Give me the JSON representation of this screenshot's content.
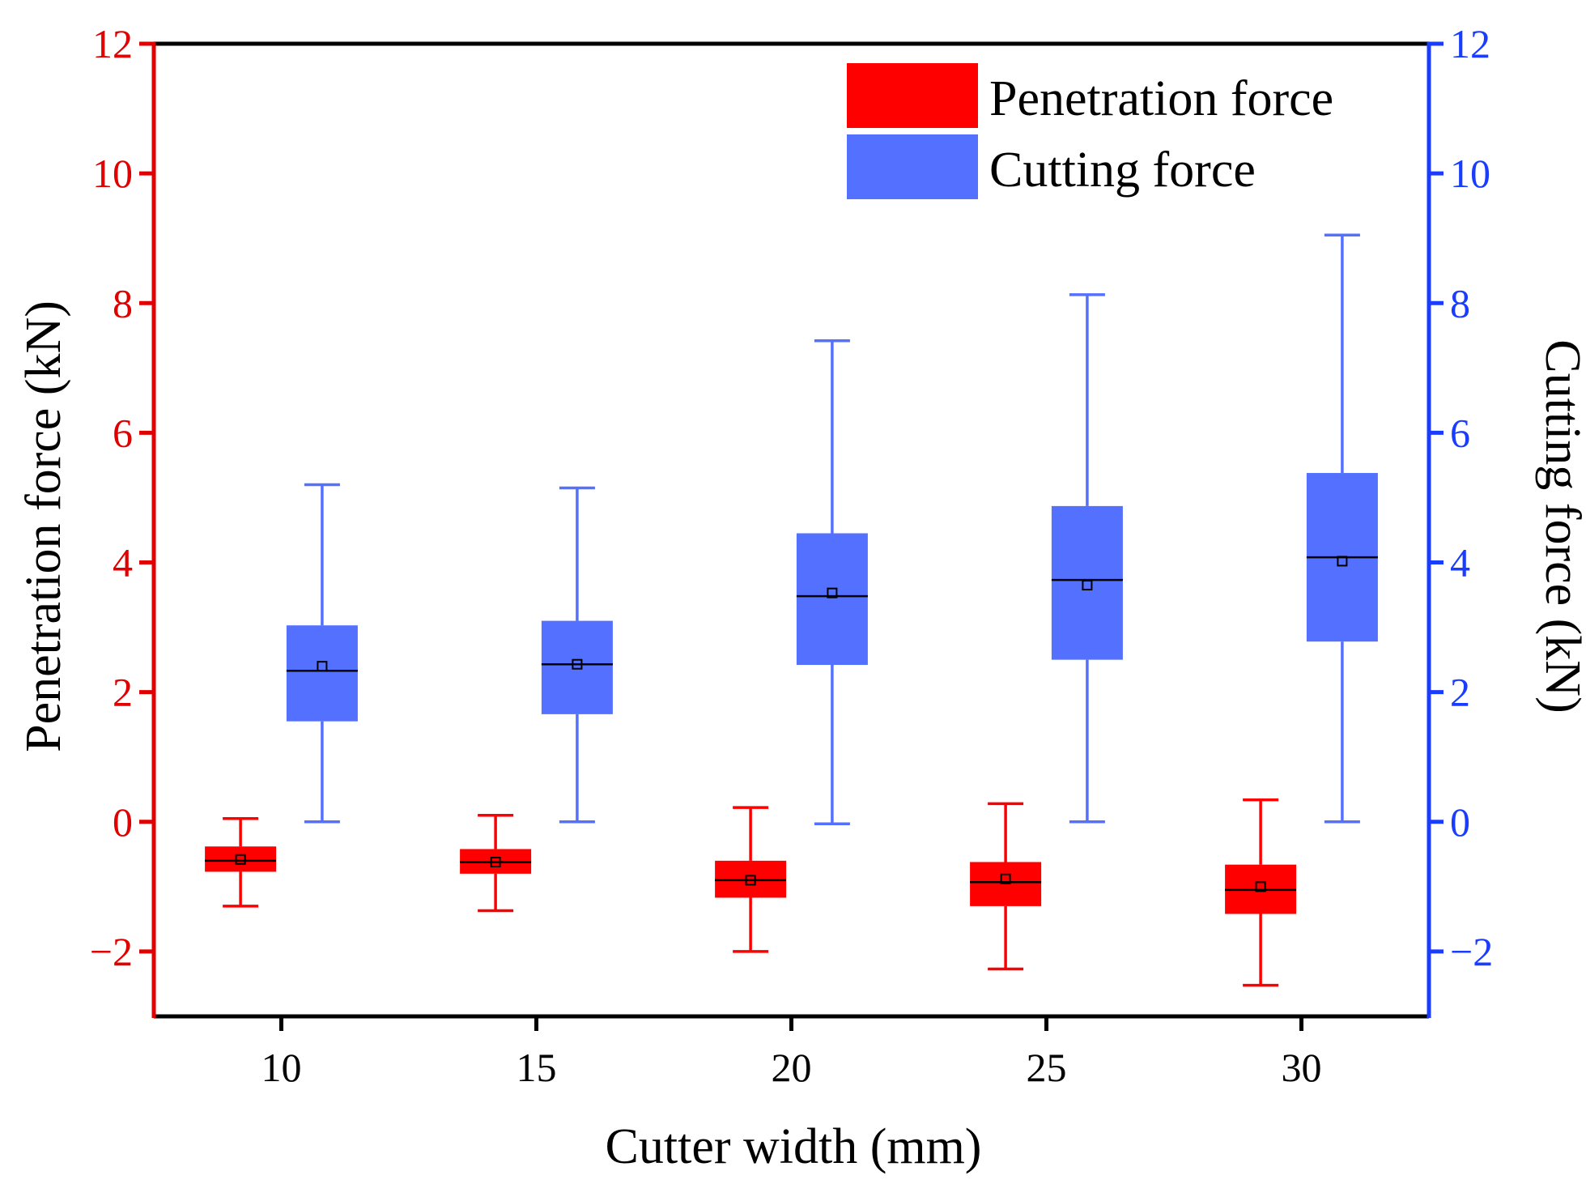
{
  "chart_data": {
    "type": "box",
    "xlabel": "Cutter width (mm)",
    "ylabel_left": "Penetration force (kN)",
    "ylabel_right": "Cutting force (kN)",
    "x_categories": [
      10,
      15,
      20,
      25,
      30
    ],
    "x_tick_labels": [
      "10",
      "15",
      "20",
      "25",
      "30"
    ],
    "xlim": [
      7.5,
      32.5
    ],
    "ylim": [
      -3,
      12
    ],
    "y_ticks": [
      -2,
      0,
      2,
      4,
      6,
      8,
      10,
      12
    ],
    "y_tick_labels": [
      "−2",
      "0",
      "2",
      "4",
      "6",
      "8",
      "10",
      "12"
    ],
    "legend_position": "top-right",
    "series": [
      {
        "name": "Penetration force",
        "axis": "left",
        "color": "#ff0000",
        "offset": -0.8,
        "boxes": [
          {
            "x": 10,
            "whisker_low": -1.3,
            "q1": -0.77,
            "median": -0.6,
            "q3": -0.38,
            "whisker_high": 0.05,
            "mean": -0.58
          },
          {
            "x": 15,
            "whisker_low": -1.37,
            "q1": -0.8,
            "median": -0.62,
            "q3": -0.42,
            "whisker_high": 0.1,
            "mean": -0.62
          },
          {
            "x": 20,
            "whisker_low": -2.0,
            "q1": -1.17,
            "median": -0.9,
            "q3": -0.6,
            "whisker_high": 0.22,
            "mean": -0.9
          },
          {
            "x": 25,
            "whisker_low": -2.27,
            "q1": -1.3,
            "median": -0.93,
            "q3": -0.62,
            "whisker_high": 0.28,
            "mean": -0.88
          },
          {
            "x": 30,
            "whisker_low": -2.52,
            "q1": -1.42,
            "median": -1.05,
            "q3": -0.66,
            "whisker_high": 0.34,
            "mean": -1.0
          }
        ]
      },
      {
        "name": "Cutting force",
        "axis": "right",
        "color": "#5470ff",
        "offset": 0.8,
        "boxes": [
          {
            "x": 10,
            "whisker_low": 0.0,
            "q1": 1.55,
            "median": 2.33,
            "q3": 3.03,
            "whisker_high": 5.2,
            "mean": 2.4
          },
          {
            "x": 15,
            "whisker_low": 0.0,
            "q1": 1.66,
            "median": 2.43,
            "q3": 3.1,
            "whisker_high": 5.15,
            "mean": 2.43
          },
          {
            "x": 20,
            "whisker_low": -0.03,
            "q1": 2.42,
            "median": 3.48,
            "q3": 4.45,
            "whisker_high": 7.42,
            "mean": 3.53
          },
          {
            "x": 25,
            "whisker_low": 0.0,
            "q1": 2.5,
            "median": 3.73,
            "q3": 4.87,
            "whisker_high": 8.13,
            "mean": 3.65
          },
          {
            "x": 30,
            "whisker_low": 0.0,
            "q1": 2.78,
            "median": 4.08,
            "q3": 5.38,
            "whisker_high": 9.05,
            "mean": 4.02
          }
        ]
      }
    ]
  },
  "colors": {
    "left_axis": "#e00000",
    "right_axis": "#1a3cff",
    "frame": "#000000"
  }
}
